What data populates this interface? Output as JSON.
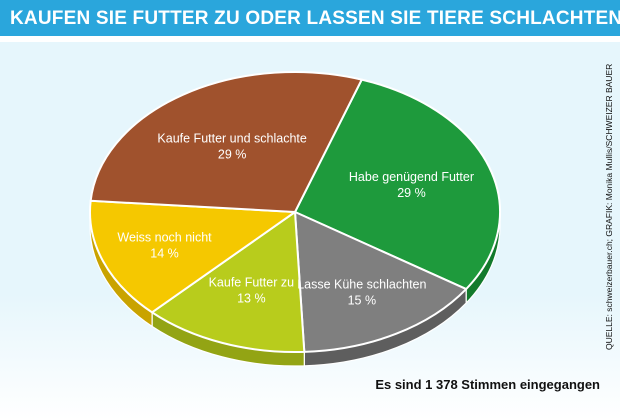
{
  "header": {
    "title": "KAUFEN SIE FUTTER ZU ODER LASSEN SIE TIERE SCHLACHTEN ?"
  },
  "chart_data": {
    "type": "pie",
    "title": "KAUFEN SIE FUTTER ZU ODER LASSEN SIE TIERE SCHLACHTEN ?",
    "slices": [
      {
        "label": "Habe genügend Futter",
        "value": 29,
        "value_label": "29 %",
        "color": "#1e9a3c",
        "side_color": "#137a2c"
      },
      {
        "label": "Lasse Kühe schlachten",
        "value": 15,
        "value_label": "15 %",
        "color": "#7f7f7f",
        "side_color": "#5e5e5e"
      },
      {
        "label": "Kaufe Futter zu",
        "value": 13,
        "value_label": "13 %",
        "color": "#b8cc1c",
        "side_color": "#93a414"
      },
      {
        "label": "Weiss noch nicht",
        "value": 14,
        "value_label": "14 %",
        "color": "#f5c800",
        "side_color": "#c9a300"
      },
      {
        "label": "Kaufe Futter und schlachte",
        "value": 29,
        "value_label": "29 %",
        "color": "#a0522d",
        "side_color": "#7c3d1f"
      }
    ]
  },
  "source_note": "QUELLE: schweizerbauer.ch; GRAFIK: Monika Mullis/SCHWEIZER BAUER",
  "footer_note": "Es sind 1 378 Stimmen eingegangen",
  "colors": {
    "title_bar": "#2aa6dc",
    "background": "#e6f6fc"
  }
}
